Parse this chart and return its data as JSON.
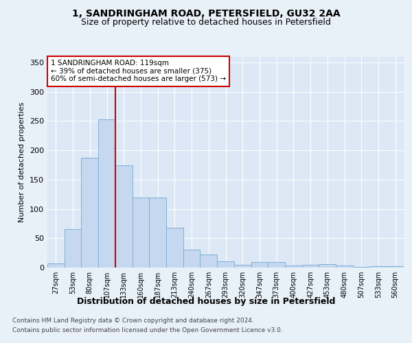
{
  "title1": "1, SANDRINGHAM ROAD, PETERSFIELD, GU32 2AA",
  "title2": "Size of property relative to detached houses in Petersfield",
  "xlabel": "Distribution of detached houses by size in Petersfield",
  "ylabel": "Number of detached properties",
  "categories": [
    "27sqm",
    "53sqm",
    "80sqm",
    "107sqm",
    "133sqm",
    "160sqm",
    "187sqm",
    "213sqm",
    "240sqm",
    "267sqm",
    "293sqm",
    "320sqm",
    "347sqm",
    "373sqm",
    "400sqm",
    "427sqm",
    "453sqm",
    "480sqm",
    "507sqm",
    "533sqm",
    "560sqm"
  ],
  "values": [
    7,
    65,
    187,
    253,
    175,
    120,
    120,
    68,
    31,
    22,
    10,
    5,
    9,
    9,
    4,
    5,
    6,
    3,
    1,
    2,
    2
  ],
  "bar_color": "#c5d8f0",
  "bar_edge_color": "#7fafd4",
  "vline_x": 3.5,
  "vline_color": "#cc0000",
  "annotation_line1": "1 SANDRINGHAM ROAD: 119sqm",
  "annotation_line2": "← 39% of detached houses are smaller (375)",
  "annotation_line3": "60% of semi-detached houses are larger (573) →",
  "annotation_box_facecolor": "#ffffff",
  "annotation_box_edgecolor": "#cc0000",
  "footnote1": "Contains HM Land Registry data © Crown copyright and database right 2024.",
  "footnote2": "Contains public sector information licensed under the Open Government Licence v3.0.",
  "bg_color": "#e8f0f8",
  "plot_bg_color": "#dce8f5",
  "ylim": [
    0,
    360
  ],
  "yticks": [
    0,
    50,
    100,
    150,
    200,
    250,
    300,
    350
  ],
  "title1_fontsize": 10,
  "title2_fontsize": 9,
  "ylabel_fontsize": 8,
  "xlabel_fontsize": 9,
  "tick_fontsize": 8,
  "xtick_fontsize": 7
}
